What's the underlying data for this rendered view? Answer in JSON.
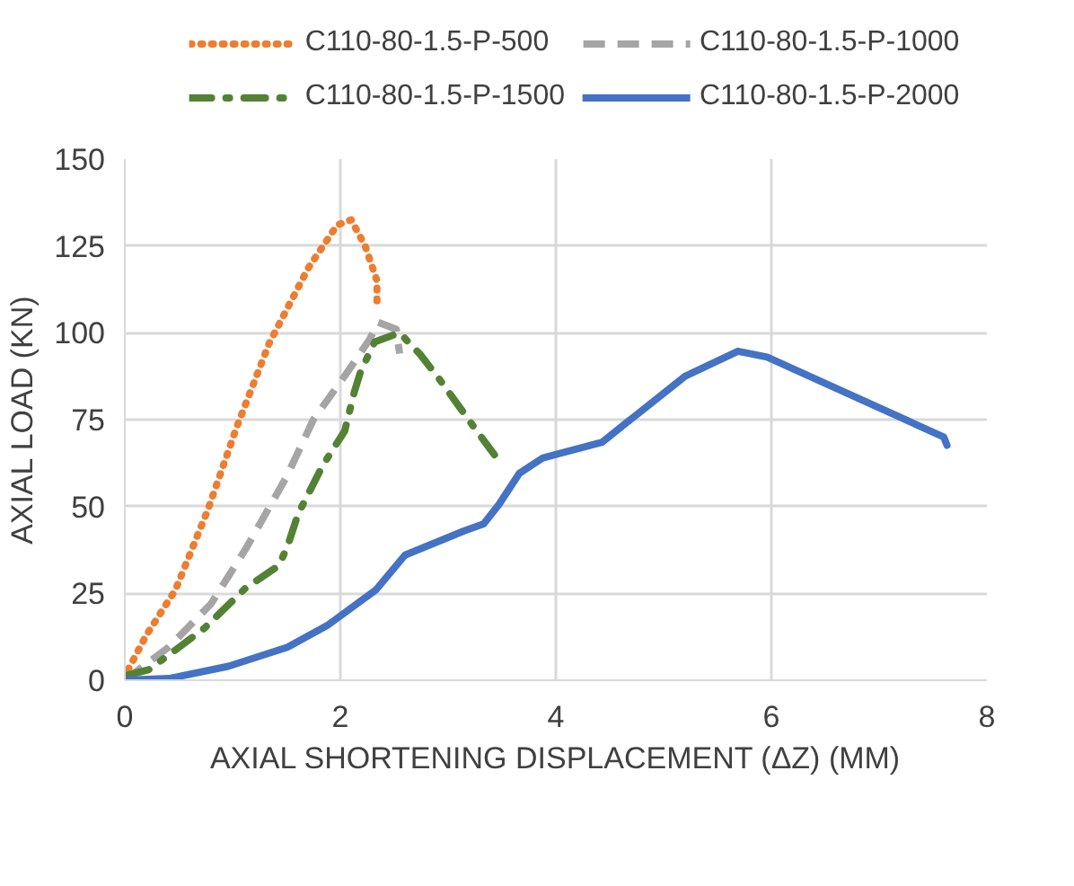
{
  "chart_data": {
    "type": "line",
    "xlabel": "AXIAL SHORTENING DISPLACEMENT (ΔZ) (MM)",
    "ylabel": "AXIAL LOAD (KN)",
    "xlim": [
      0,
      8
    ],
    "xticks": [
      0,
      2,
      4,
      6,
      8
    ],
    "ylim": [
      0,
      150
    ],
    "yticks": [
      0,
      25,
      50,
      75,
      100,
      125,
      150
    ],
    "grid": true,
    "legend": "top",
    "marker": "none",
    "series": [
      {
        "name": "C110-80-1.5-P-500",
        "color": "#ed7d31",
        "line_style": "dotted",
        "x": [
          0.03,
          0.2,
          0.47,
          0.77,
          1.04,
          1.34,
          1.7,
          1.97,
          2.1,
          2.23,
          2.34,
          2.34
        ],
        "values": [
          3,
          13,
          26,
          49,
          73,
          97,
          118.5,
          131,
          132.5,
          125,
          115,
          108
        ]
      },
      {
        "name": "C110-80-1.5-P-1000",
        "color": "#a5a5a5",
        "line_style": "dashed",
        "x": [
          0,
          0.41,
          0.8,
          1.12,
          1.5,
          1.75,
          2.05,
          2.27,
          2.35,
          2.52,
          2.55
        ],
        "values": [
          0,
          9.6,
          22,
          37.7,
          58.5,
          75,
          88,
          98,
          103,
          101,
          94
        ]
      },
      {
        "name": "C110-80-1.5-P-1500",
        "color": "#548235",
        "line_style": "dashdot",
        "x": [
          0.03,
          0.22,
          0.47,
          0.74,
          1.12,
          1.43,
          1.51,
          1.61,
          1.84,
          2.04,
          2.13,
          2.19,
          2.32,
          2.55,
          2.74,
          2.92,
          3.26,
          3.44
        ],
        "values": [
          1.5,
          3,
          8.7,
          15,
          26.5,
          33,
          38.6,
          48,
          62,
          71.7,
          83,
          89,
          97.4,
          100,
          93.8,
          86.6,
          72,
          64.5
        ]
      },
      {
        "name": "C110-80-1.5-P-2000",
        "color": "#4472c4",
        "line_style": "solid",
        "x": [
          0,
          0.41,
          0.96,
          1.51,
          1.89,
          2.33,
          2.6,
          3.15,
          3.33,
          3.47,
          3.66,
          3.88,
          4.43,
          4.65,
          4.72,
          5.2,
          5.69,
          5.96,
          7.6,
          7.63
        ],
        "values": [
          0,
          0.5,
          4,
          9.5,
          16,
          26,
          36,
          43,
          45,
          50.5,
          59.5,
          64,
          68.5,
          74,
          75.7,
          87.5,
          94.7,
          93,
          70,
          67.6
        ]
      }
    ]
  }
}
